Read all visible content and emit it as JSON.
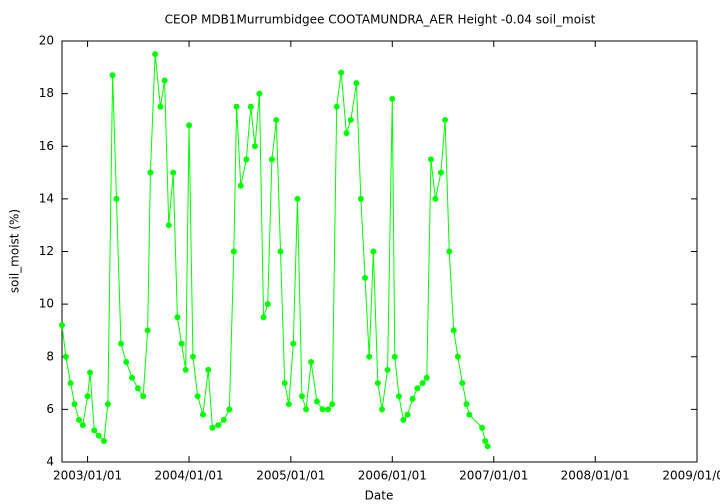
{
  "chart_data": {
    "type": "scatter-line",
    "title": "CEOP MDB1Murrumbidgee COOTAMUNDRA_AER Height -0.04 soil_moist",
    "x_label": "Date",
    "y_label": "soil_moist (%)",
    "color": "#00ff00",
    "x": [
      "2002/10/01",
      "2002/10/15",
      "2002/11/01",
      "2002/11/15",
      "2002/12/01",
      "2002/12/15",
      "2003/01/01",
      "2003/01/10",
      "2003/01/25",
      "2003/02/10",
      "2003/03/01",
      "2003/03/15",
      "2003/04/01",
      "2003/04/15",
      "2003/05/01",
      "2003/05/20",
      "2003/06/10",
      "2003/07/01",
      "2003/07/20",
      "2003/08/05",
      "2003/08/15",
      "2003/09/01",
      "2003/09/20",
      "2003/10/05",
      "2003/10/20",
      "2003/11/05",
      "2003/11/20",
      "2003/12/05",
      "2003/12/20",
      "2004/01/01",
      "2004/01/15",
      "2004/02/01",
      "2004/02/20",
      "2004/03/10",
      "2004/03/25",
      "2004/04/15",
      "2004/05/05",
      "2004/05/25",
      "2004/06/10",
      "2004/06/20",
      "2004/07/05",
      "2004/07/25",
      "2004/08/10",
      "2004/08/25",
      "2004/09/10",
      "2004/09/25",
      "2004/10/10",
      "2004/10/25",
      "2004/11/10",
      "2004/11/25",
      "2004/12/10",
      "2004/12/25",
      "2005/01/10",
      "2005/01/25",
      "2005/02/10",
      "2005/02/25",
      "2005/03/15",
      "2005/04/05",
      "2005/04/25",
      "2005/05/15",
      "2005/05/30",
      "2005/06/15",
      "2005/07/01",
      "2005/07/20",
      "2005/08/05",
      "2005/08/25",
      "2005/09/10",
      "2005/09/25",
      "2005/10/10",
      "2005/10/25",
      "2005/11/10",
      "2005/11/25",
      "2005/12/15",
      "2006/01/01",
      "2006/01/10",
      "2006/01/25",
      "2006/02/10",
      "2006/02/25",
      "2006/03/15",
      "2006/04/01",
      "2006/04/20",
      "2006/05/05",
      "2006/05/20",
      "2006/06/05",
      "2006/06/25",
      "2006/07/10",
      "2006/07/25",
      "2006/08/10",
      "2006/08/25",
      "2006/09/10",
      "2006/09/25",
      "2006/10/05",
      "2006/11/20",
      "2006/12/01",
      "2006/12/10"
    ],
    "values": [
      9.2,
      8.0,
      7.0,
      6.2,
      5.6,
      5.4,
      6.5,
      7.4,
      5.2,
      5.0,
      4.8,
      6.2,
      18.7,
      14.0,
      8.5,
      7.8,
      7.2,
      6.8,
      6.5,
      9.0,
      15.0,
      19.5,
      17.5,
      18.5,
      13.0,
      15.0,
      9.5,
      8.5,
      7.5,
      16.8,
      8.0,
      6.5,
      5.8,
      7.5,
      5.3,
      5.4,
      5.6,
      6.0,
      12.0,
      17.5,
      14.5,
      15.5,
      17.5,
      16.0,
      18.0,
      9.5,
      10.0,
      15.5,
      17.0,
      12.0,
      7.0,
      6.2,
      8.5,
      14.0,
      6.5,
      6.0,
      7.8,
      6.3,
      6.0,
      6.0,
      6.2,
      17.5,
      18.8,
      16.5,
      17.0,
      18.4,
      14.0,
      11.0,
      8.0,
      12.0,
      7.0,
      6.0,
      7.5,
      17.8,
      8.0,
      6.5,
      5.6,
      5.8,
      6.4,
      6.8,
      7.0,
      7.2,
      15.5,
      14.0,
      15.0,
      17.0,
      12.0,
      9.0,
      8.0,
      7.0,
      6.2,
      5.8,
      5.3,
      4.8,
      4.6
    ],
    "xlim": [
      "2002/10/01",
      "2009/01/01"
    ],
    "xticks": [
      "2003/01/01",
      "2004/01/01",
      "2005/01/01",
      "2006/01/01",
      "2007/01/01",
      "2008/01/01",
      "2009/01/01"
    ],
    "ylim": [
      4,
      20
    ],
    "yticks": [
      4,
      6,
      8,
      10,
      12,
      14,
      16,
      18,
      20
    ]
  }
}
